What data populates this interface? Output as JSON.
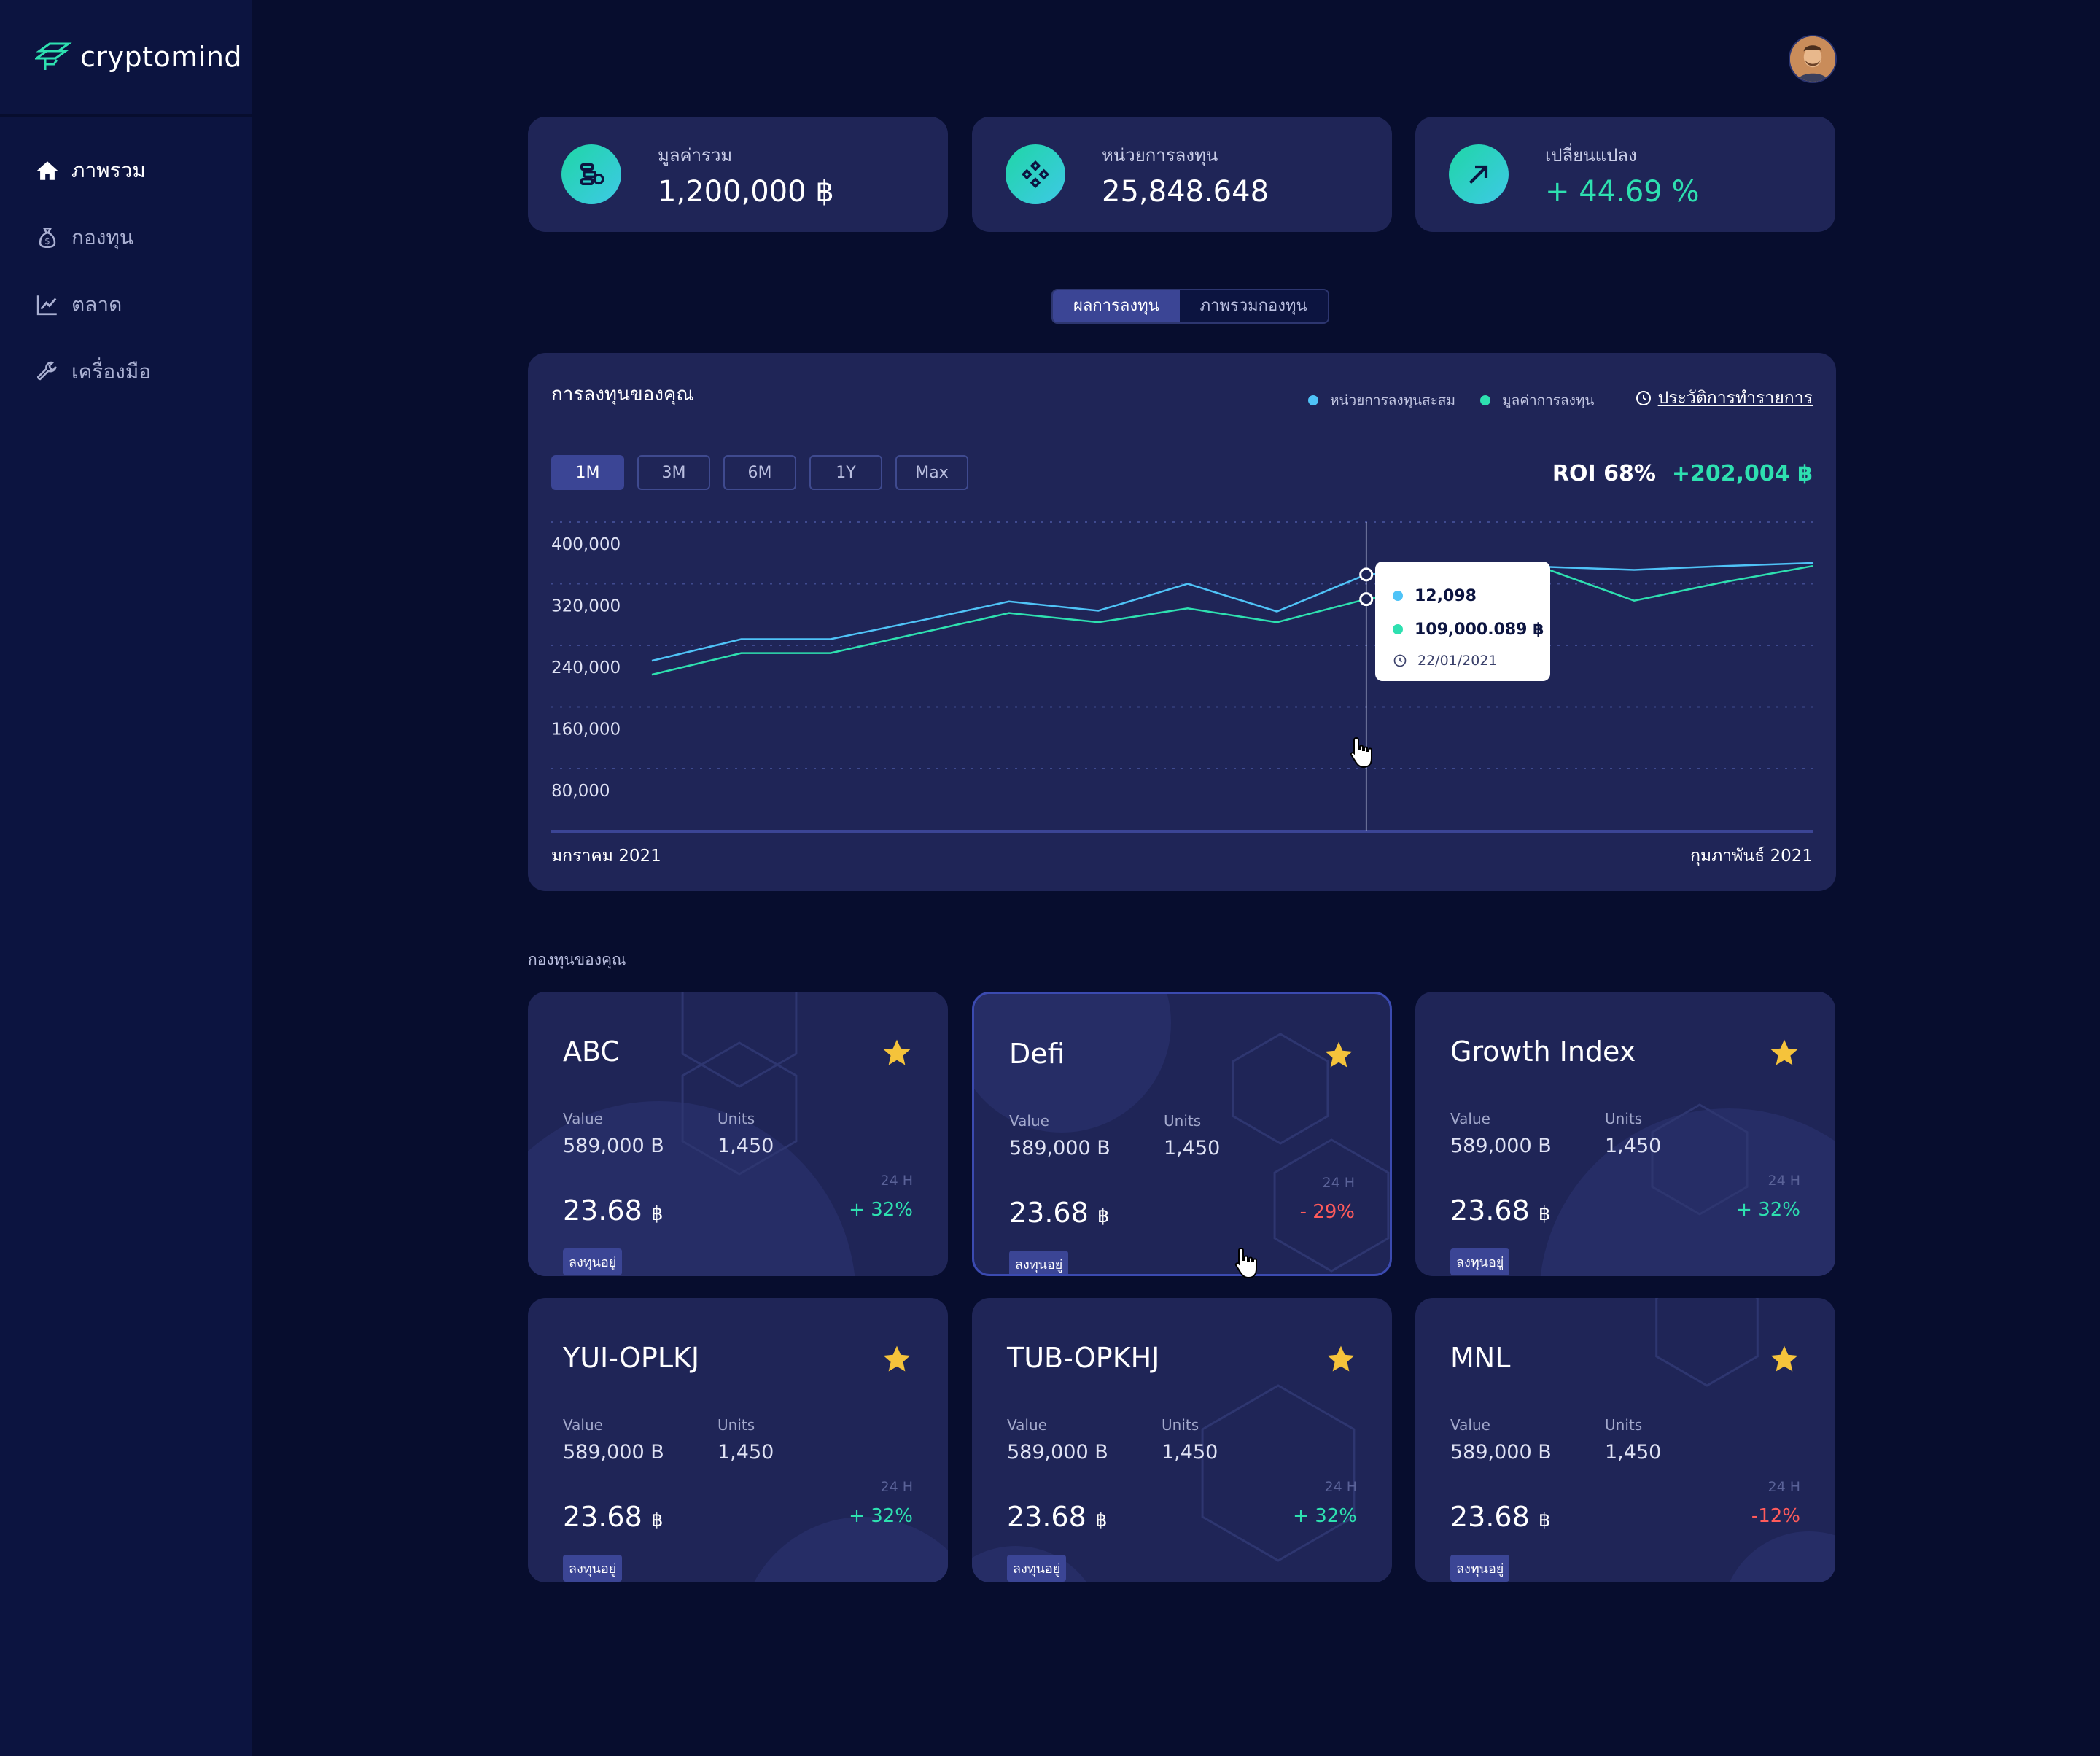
{
  "brand": {
    "name": "cryptomind"
  },
  "sidebar": {
    "items": [
      {
        "label": "ภาพรวม",
        "icon": "home-icon",
        "active": true
      },
      {
        "label": "กองทุน",
        "icon": "money-bag-icon",
        "active": false
      },
      {
        "label": "ตลาด",
        "icon": "chart-icon",
        "active": false
      },
      {
        "label": "เครื่องมือ",
        "icon": "wrench-icon",
        "active": false
      }
    ]
  },
  "stats": [
    {
      "label": "มูลค่ารวม",
      "value": "1,200,000 ฿",
      "icon": "coins-icon"
    },
    {
      "label": "หน่วยการลงทุน",
      "value": "25,848.648",
      "icon": "diamond-grid-icon"
    },
    {
      "label": "เปลี่ยนแปลง",
      "value": "+ 44.69 %",
      "icon": "trend-up-icon"
    }
  ],
  "view_tabs": [
    {
      "label": "ผลการลงทุน",
      "active": true
    },
    {
      "label": "ภาพรวมกองทุน",
      "active": false
    }
  ],
  "chart": {
    "title": "การลงทุนของคุณ",
    "legend": [
      {
        "label": "หน่วยการลงทุนสะสม",
        "color": "#4fc3f7"
      },
      {
        "label": "มูลค่าการลงทุน",
        "color": "#2ee0b0"
      }
    ],
    "history_link": "ประวัติการทำรายการ",
    "ranges": [
      {
        "label": "1M",
        "active": true
      },
      {
        "label": "3M",
        "active": false
      },
      {
        "label": "6M",
        "active": false
      },
      {
        "label": "1Y",
        "active": false
      },
      {
        "label": "Max",
        "active": false
      }
    ],
    "roi_label": "ROI 68%",
    "roi_gain": "+202,004 ฿",
    "x_start_label": "มกราคม 2021",
    "x_end_label": "กุมภาพันธ์ 2021",
    "tooltip": {
      "units": "12,098",
      "value": "109,000.089 ฿",
      "date": "22/01/2021"
    }
  },
  "chart_data": {
    "type": "line",
    "title": "การลงทุนของคุณ",
    "xlabel": "",
    "ylabel": "",
    "ylim": [
      0,
      400000
    ],
    "y_ticks": [
      400000,
      320000,
      240000,
      160000,
      80000
    ],
    "y_tick_labels": [
      "400,000",
      "320,000",
      "240,000",
      "160,000",
      "80,000"
    ],
    "x": [
      0,
      1,
      2,
      3,
      4,
      5,
      6,
      7,
      8,
      9,
      10,
      11,
      12,
      13
    ],
    "series": [
      {
        "name": "หน่วยการลงทุนสะสม",
        "color": "#4fc3f7",
        "values": [
          220000,
          248000,
          248000,
          272000,
          297000,
          285000,
          320000,
          284000,
          332000,
          337000,
          342000,
          338000,
          343000,
          347000
        ]
      },
      {
        "name": "มูลค่าการลงทุน",
        "color": "#2ee0b0",
        "values": [
          202000,
          230000,
          230000,
          256000,
          282000,
          270000,
          288000,
          270000,
          300000,
          320000,
          340000,
          298000,
          322000,
          343000
        ]
      }
    ],
    "hover_index": 8,
    "grid": true,
    "legend_position": "top-right"
  },
  "funds": {
    "section_label": "กองทุนของคุณ",
    "value_label": "Value",
    "units_label": "Units",
    "h24_label": "24 H",
    "items": [
      {
        "name": "ABC",
        "value": "589,000 B",
        "units": "1,450",
        "price": "23.68",
        "currency": "฿",
        "change": "+ 32%",
        "trend": "up",
        "badge": "ลงทุนอยู่"
      },
      {
        "name": "Defi",
        "value": "589,000 B",
        "units": "1,450",
        "price": "23.68",
        "currency": "฿",
        "change": "- 29%",
        "trend": "down",
        "badge": "ลงทุนอยู่"
      },
      {
        "name": "Growth Index",
        "value": "589,000 B",
        "units": "1,450",
        "price": "23.68",
        "currency": "฿",
        "change": "+ 32%",
        "trend": "up",
        "badge": "ลงทุนอยู่"
      },
      {
        "name": "YUI-OPLKJ",
        "value": "589,000 B",
        "units": "1,450",
        "price": "23.68",
        "currency": "฿",
        "change": "+ 32%",
        "trend": "up",
        "badge": "ลงทุนอยู่"
      },
      {
        "name": "TUB-OPKHJ",
        "value": "589,000 B",
        "units": "1,450",
        "price": "23.68",
        "currency": "฿",
        "change": "+ 32%",
        "trend": "up",
        "badge": "ลงทุนอยู่"
      },
      {
        "name": "MNL",
        "value": "589,000 B",
        "units": "1,450",
        "price": "23.68",
        "currency": "฿",
        "change": "-12%",
        "trend": "down",
        "badge": "ลงทุนอยู่"
      }
    ]
  },
  "colors": {
    "background": "#070d2e",
    "sidebar": "#0c1440",
    "card": "#1f2557",
    "accent": "#3b4595",
    "up": "#2ee0b0",
    "down": "#ff5b5b",
    "star": "#f5c33b"
  }
}
